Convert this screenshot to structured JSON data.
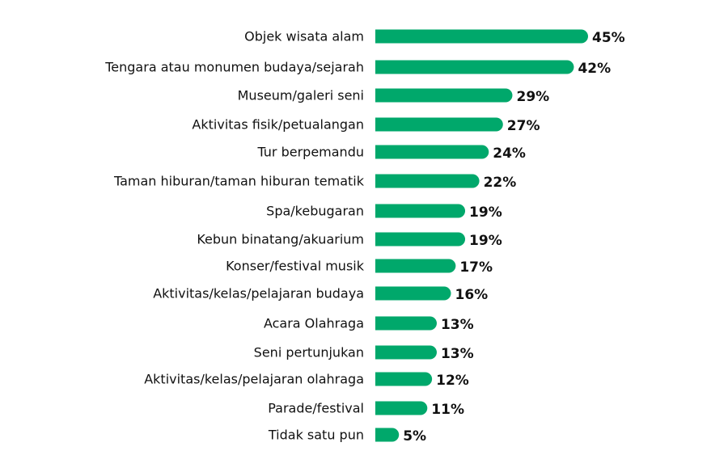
{
  "chart_data": {
    "type": "bar",
    "orientation": "horizontal",
    "categories": [
      "Objek wisata alam",
      "Tengara atau monumen budaya/sejarah",
      "Museum/galeri seni",
      "Aktivitas fisik/petualangan",
      "Tur berpemandu",
      "Taman hiburan/taman hiburan tematik",
      "Spa/kebugaran",
      "Kebun binatang/akuarium",
      "Konser/festival musik",
      "Aktivitas/kelas/pelajaran budaya",
      "Acara Olahraga",
      "Seni pertunjukan",
      "Aktivitas/kelas/pelajaran olahraga",
      "Parade/festival",
      "Tidak satu pun"
    ],
    "values": [
      45,
      42,
      29,
      27,
      24,
      22,
      19,
      19,
      17,
      16,
      13,
      13,
      12,
      11,
      5
    ],
    "value_labels": [
      "45%",
      "42%",
      "29%",
      "27%",
      "24%",
      "22%",
      "19%",
      "19%",
      "17%",
      "16%",
      "13%",
      "13%",
      "12%",
      "11%",
      "5%"
    ],
    "unit": "%",
    "title": "",
    "xlabel": "",
    "ylabel": "",
    "xlim": [
      0,
      45
    ],
    "grid": false,
    "legend": "none",
    "bar_color": "#00A86B",
    "text_color": "#111111"
  }
}
